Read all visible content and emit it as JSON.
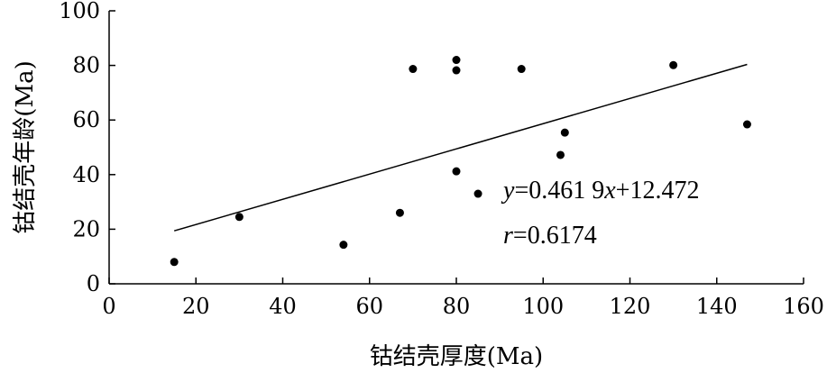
{
  "chart_data": {
    "type": "scatter",
    "title": "",
    "xlabel": "钴结壳厚度(Ma)",
    "ylabel": "钴结壳年龄(Ma)",
    "xlim": [
      0,
      160
    ],
    "ylim": [
      0,
      100
    ],
    "xticks": [
      0,
      20,
      40,
      60,
      80,
      100,
      120,
      140,
      160
    ],
    "yticks": [
      0,
      20,
      40,
      60,
      80,
      100
    ],
    "grid": false,
    "series": [
      {
        "points": [
          {
            "x": 15,
            "y": 8
          },
          {
            "x": 30,
            "y": 24.5
          },
          {
            "x": 54,
            "y": 14.3
          },
          {
            "x": 67,
            "y": 26
          },
          {
            "x": 70,
            "y": 78.7
          },
          {
            "x": 80,
            "y": 82
          },
          {
            "x": 80,
            "y": 78.2
          },
          {
            "x": 80,
            "y": 41.2
          },
          {
            "x": 85,
            "y": 33
          },
          {
            "x": 95,
            "y": 78.7
          },
          {
            "x": 104,
            "y": 47.2
          },
          {
            "x": 105,
            "y": 55.4
          },
          {
            "x": 130,
            "y": 80.1
          },
          {
            "x": 147,
            "y": 58.4
          }
        ]
      }
    ],
    "trendline": {
      "slope": 0.4619,
      "intercept": 12.472,
      "x_range": [
        15,
        147
      ]
    },
    "annotations": [
      {
        "id": "equation",
        "parts": [
          {
            "text": "y",
            "italic": true
          },
          {
            "text": "=0.461 9",
            "italic": false
          },
          {
            "text": "x",
            "italic": true
          },
          {
            "text": "+12.472",
            "italic": false
          }
        ]
      },
      {
        "id": "correlation",
        "parts": [
          {
            "text": "r",
            "italic": true
          },
          {
            "text": "=0.6174",
            "italic": false
          }
        ]
      }
    ]
  }
}
